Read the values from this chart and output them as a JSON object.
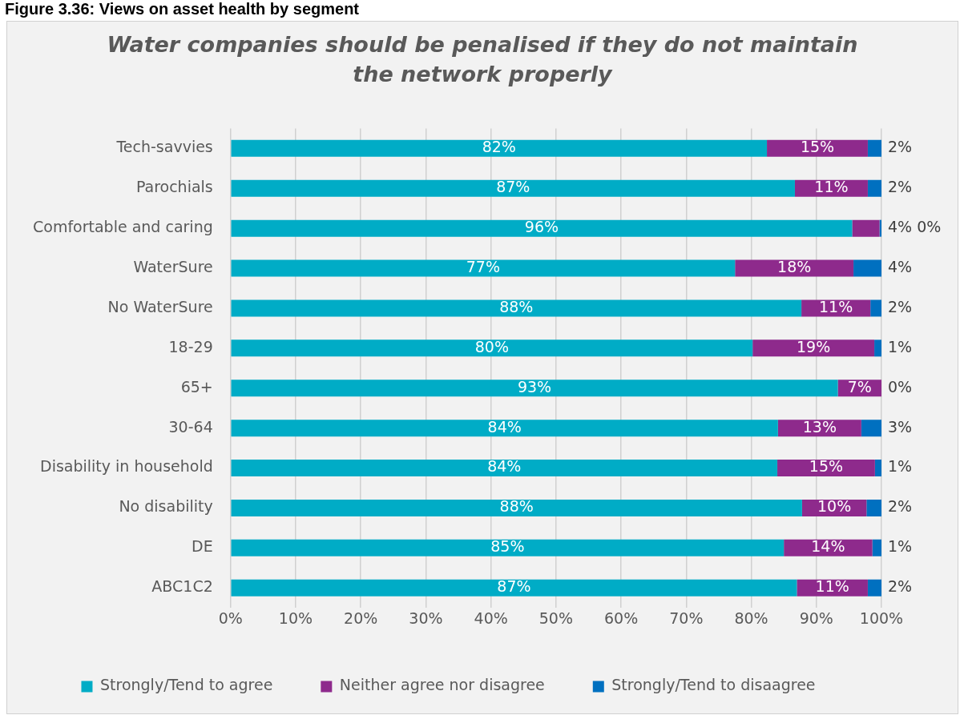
{
  "chart_data": {
    "type": "bar",
    "orientation": "horizontal",
    "stacked": true,
    "title": "Water companies should be penalised if they do not maintain the network properly",
    "annotations": [
      "Figure 3.36: Views on asset health by segment"
    ],
    "categories": [
      "Tech-savvies",
      "Parochials",
      "Comfortable and caring",
      "WaterSure",
      "No WaterSure",
      "18-29",
      "65+",
      "30-64",
      "Disability in household",
      "No disability",
      "DE",
      "ABC1C2"
    ],
    "series": [
      {
        "name": "Strongly/Tend to agree",
        "color": "#00acc6",
        "values": [
          82.4,
          86.7,
          95.5,
          77.5,
          87.7,
          80.2,
          93.3,
          84.1,
          84.0,
          87.8,
          85.0,
          87.0
        ],
        "value_labels": [
          "82%",
          "87%",
          "96%",
          "77%",
          "88%",
          "80%",
          "93%",
          "84%",
          "84%",
          "88%",
          "85%",
          "87%"
        ]
      },
      {
        "name": "Neither agree nor disagree",
        "color": "#8e2a8c",
        "values": [
          15.5,
          11.2,
          4.2,
          18.2,
          10.6,
          18.7,
          6.7,
          12.8,
          15.0,
          9.9,
          13.6,
          10.9
        ],
        "value_labels": [
          "15%",
          "11%",
          "4%",
          "18%",
          "11%",
          "19%",
          "7%",
          "13%",
          "15%",
          "10%",
          "14%",
          "11%"
        ]
      },
      {
        "name": "Strongly/Tend to disaagree",
        "color": "#0070c0",
        "values": [
          2.1,
          2.1,
          0.3,
          4.3,
          1.7,
          1.1,
          0,
          3.1,
          1.0,
          2.3,
          1.4,
          2.1
        ],
        "value_labels": [
          "2%",
          "2%",
          "0%",
          "4%",
          "2%",
          "1%",
          "0%",
          "3%",
          "1%",
          "2%",
          "1%",
          "2%"
        ]
      }
    ],
    "xlim": [
      0,
      100
    ],
    "xticks": [
      {
        "value": 0,
        "label": "0%"
      },
      {
        "value": 10,
        "label": "10%"
      },
      {
        "value": 20,
        "label": "20%"
      },
      {
        "value": 30,
        "label": "30%"
      },
      {
        "value": 40,
        "label": "40%"
      },
      {
        "value": 50,
        "label": "50%"
      },
      {
        "value": 60,
        "label": "60%"
      },
      {
        "value": 70,
        "label": "70%"
      },
      {
        "value": 80,
        "label": "80%"
      },
      {
        "value": 90,
        "label": "90%"
      },
      {
        "value": 100,
        "label": "100%"
      }
    ],
    "grid": "x",
    "legend": "bottom"
  }
}
